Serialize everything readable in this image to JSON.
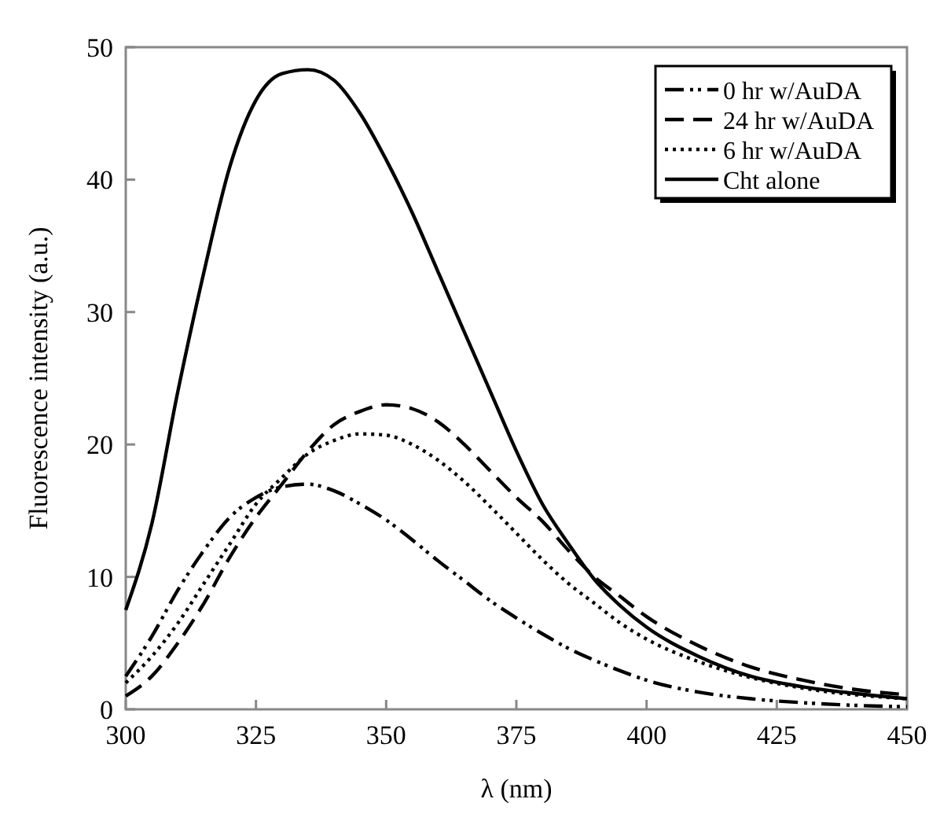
{
  "chart_data": {
    "type": "line",
    "xlabel": "λ (nm)",
    "ylabel": "Fluorescence intensity (a.u.)",
    "x": [
      300,
      305,
      310,
      315,
      320,
      325,
      330,
      335,
      340,
      345,
      350,
      355,
      360,
      365,
      370,
      375,
      380,
      385,
      390,
      395,
      400,
      410,
      420,
      430,
      440,
      450
    ],
    "xlim": [
      300,
      450
    ],
    "xticks": [
      300,
      325,
      350,
      375,
      400,
      425,
      450
    ],
    "ylim": [
      0,
      50
    ],
    "yticks": [
      0,
      10,
      20,
      30,
      40,
      50
    ],
    "legend": "top right",
    "grid": false,
    "series": [
      {
        "name": "0 hr w/AuDA",
        "color": "#000000",
        "line_style": "dashdot",
        "values": [
          2.5,
          5.5,
          9,
          12,
          14.5,
          16,
          16.8,
          17,
          16.5,
          15.5,
          14.3,
          12.8,
          11.2,
          9.7,
          8.2,
          6.9,
          5.7,
          4.6,
          3.7,
          2.9,
          2.2,
          1.3,
          0.8,
          0.5,
          0.3,
          0.2
        ]
      },
      {
        "name": "24 hr w/AuDA",
        "color": "#000000",
        "line_style": "dashed",
        "values": [
          1,
          2.5,
          5,
          8,
          11.5,
          14.5,
          17,
          19.5,
          21.5,
          22.5,
          23,
          22.7,
          21.7,
          20,
          18,
          16,
          14.2,
          12,
          10,
          8.5,
          7,
          4.8,
          3.2,
          2.2,
          1.5,
          1.1
        ]
      },
      {
        "name": "6 hr w/AuDA",
        "color": "#000000",
        "line_style": "dotted",
        "values": [
          2,
          4,
          6.5,
          9.5,
          12.5,
          15.5,
          17.5,
          19.3,
          20.3,
          20.8,
          20.7,
          20,
          18.8,
          17.2,
          15.3,
          13.3,
          11.3,
          9.5,
          8,
          6.5,
          5.3,
          3.6,
          2.4,
          1.6,
          1.1,
          0.8
        ]
      },
      {
        "name": "Cht alone",
        "color": "#000000",
        "line_style": "solid",
        "values": [
          7.5,
          14,
          24,
          33,
          41,
          46,
          48,
          48.3,
          47.5,
          45,
          41.5,
          37.5,
          33,
          28.5,
          24,
          19.5,
          15.5,
          12.5,
          9.8,
          7.8,
          6.2,
          4,
          2.5,
          1.7,
          1.2,
          0.8
        ]
      }
    ]
  }
}
